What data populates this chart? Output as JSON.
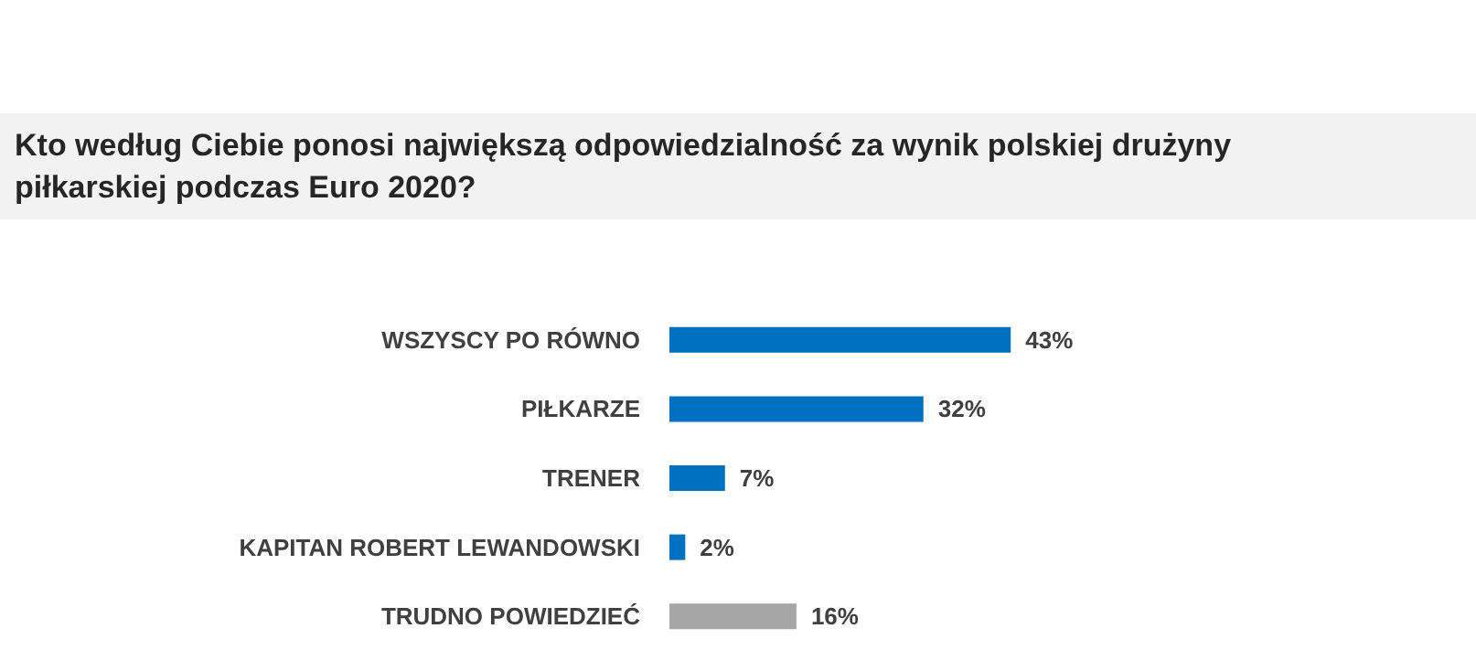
{
  "chart_data": {
    "type": "bar",
    "orientation": "horizontal",
    "title": "Kto według Ciebie ponosi największą odpowiedzialność za wynik polskiej drużyny piłkarskiej podczas Euro 2020?",
    "categories": [
      "WSZYSCY PO RÓWNO",
      "PIŁKARZE",
      "TRENER",
      "KAPITAN ROBERT LEWANDOWSKI",
      "TRUDNO POWIEDZIEĆ"
    ],
    "values": [
      43,
      32,
      7,
      2,
      16
    ],
    "value_labels": [
      "43%",
      "32%",
      "7%",
      "2%",
      "16%"
    ],
    "colors": [
      "#0070c0",
      "#0070c0",
      "#0070c0",
      "#0070c0",
      "#a6a6a6"
    ]
  }
}
